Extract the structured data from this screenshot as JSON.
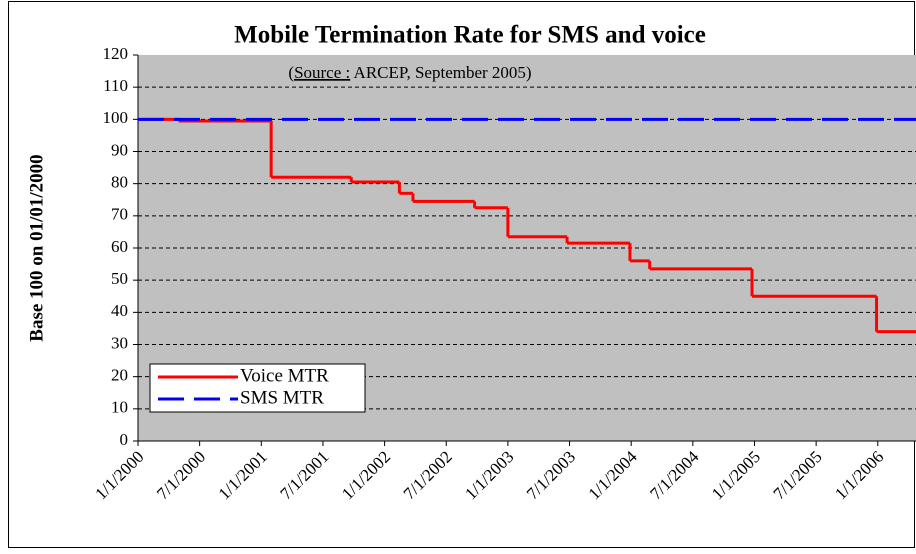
{
  "chart_data": {
    "type": "line",
    "step": "post",
    "title": "Mobile Termination Rate for SMS and voice",
    "subtitle": [
      "(",
      "Source :",
      " ARCEP, September 2005)"
    ],
    "ylabel": "Base 100 on 01/01/2000",
    "xlim": [
      2000,
      2006.31
    ],
    "ylim": [
      0,
      120
    ],
    "yticks": [
      0,
      10,
      20,
      30,
      40,
      50,
      60,
      70,
      80,
      90,
      100,
      110,
      120
    ],
    "xticks": [
      {
        "value": 2000,
        "label": "1/1/2000"
      },
      {
        "value": 2000.5,
        "label": "7/1/2000"
      },
      {
        "value": 2001,
        "label": "1/1/2001"
      },
      {
        "value": 2001.5,
        "label": "7/1/2001"
      },
      {
        "value": 2002,
        "label": "1/1/2002"
      },
      {
        "value": 2002.5,
        "label": "7/1/2002"
      },
      {
        "value": 2003,
        "label": "1/1/2003"
      },
      {
        "value": 2003.5,
        "label": "7/1/2003"
      },
      {
        "value": 2004,
        "label": "1/1/2004"
      },
      {
        "value": 2004.5,
        "label": "7/1/2004"
      },
      {
        "value": 2005,
        "label": "1/1/2005"
      },
      {
        "value": 2005.5,
        "label": "7/1/2005"
      },
      {
        "value": 2006,
        "label": "1/1/2006"
      }
    ],
    "grid": true,
    "legend": "lower left",
    "series": [
      {
        "name": "Voice MTR",
        "color": "#ff0000",
        "style": "solid",
        "x": [
          2000,
          2000.33,
          2001.08,
          2001.73,
          2002.12,
          2002.23,
          2002.73,
          2003,
          2003.48,
          2003.99,
          2004.15,
          2004.98,
          2005.99,
          2006.31
        ],
        "values": [
          100,
          99.5,
          82,
          80.5,
          77,
          74.5,
          72.5,
          63.5,
          61.5,
          56,
          53.5,
          45,
          34,
          34
        ]
      },
      {
        "name": "SMS MTR",
        "color": "#0000ff",
        "style": "dashed",
        "x": [
          2000,
          2006.31
        ],
        "values": [
          100,
          100
        ]
      }
    ]
  }
}
